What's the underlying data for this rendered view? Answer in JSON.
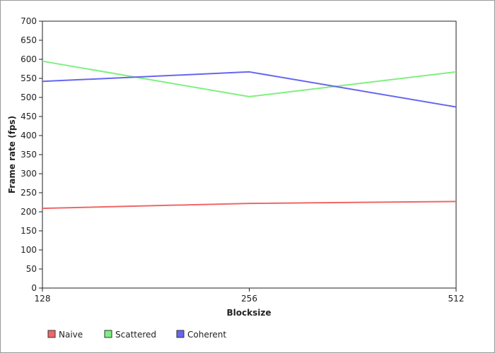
{
  "chart_data": {
    "type": "line",
    "title": "",
    "xlabel": "Blocksize",
    "ylabel": "Frame rate (fps)",
    "categories": [
      "128",
      "256",
      "512"
    ],
    "ylim": [
      0,
      700
    ],
    "yticks": [
      0,
      50,
      100,
      150,
      200,
      250,
      300,
      350,
      400,
      450,
      500,
      550,
      600,
      650,
      700
    ],
    "grid": false,
    "legend_position": "bottom-left",
    "series": [
      {
        "name": "Naive",
        "color": "#f06666",
        "values": [
          209,
          222,
          227
        ]
      },
      {
        "name": "Scattered",
        "color": "#7ff07f",
        "values": [
          595,
          502,
          567
        ]
      },
      {
        "name": "Coherent",
        "color": "#6666f0",
        "values": [
          542,
          567,
          475
        ]
      }
    ]
  }
}
